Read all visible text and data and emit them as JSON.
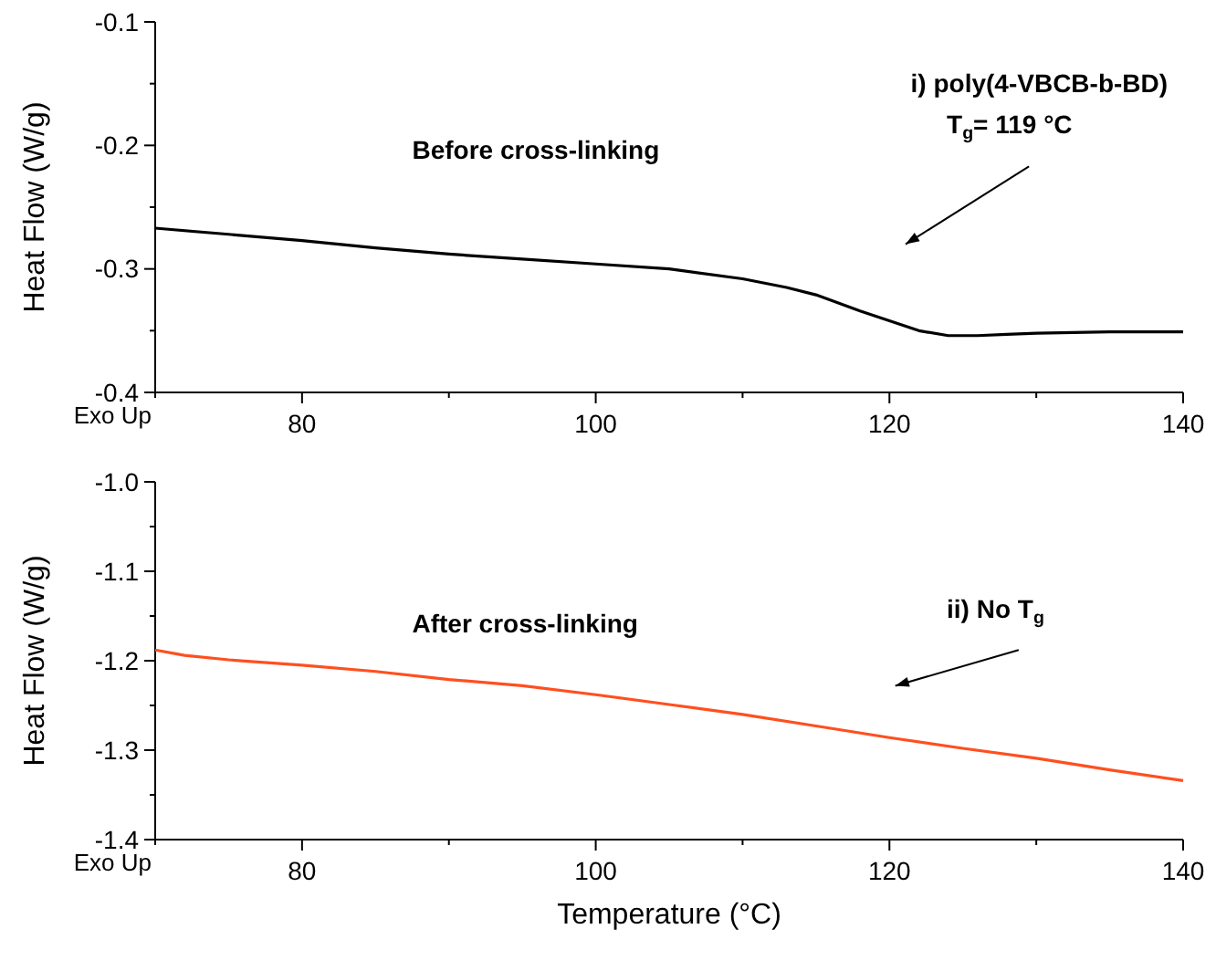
{
  "chart_data": [
    {
      "type": "line",
      "ylabel": "Heat Flow (W/g)",
      "xlim": [
        70,
        140
      ],
      "ylim": [
        -0.4,
        -0.1
      ],
      "xticks": [
        {
          "value": 70,
          "label": null
        },
        80,
        {
          "value": 90,
          "label": null
        },
        100,
        {
          "value": 110,
          "label": null
        },
        120,
        {
          "value": 130,
          "label": null
        },
        140
      ],
      "yticks": [
        -0.4,
        {
          "value": -0.35,
          "label": null
        },
        -0.3,
        {
          "value": -0.25,
          "label": null
        },
        -0.2,
        {
          "value": -0.15,
          "label": null
        },
        -0.1
      ],
      "grid": false,
      "marker": "none",
      "line_style": "solid",
      "series": [
        {
          "color": "#000000",
          "x": [
            70,
            75,
            80,
            85,
            90,
            95,
            100,
            105,
            110,
            113,
            115,
            118,
            120,
            122,
            124,
            126,
            128,
            130,
            135,
            140
          ],
          "values": [
            -0.267,
            -0.272,
            -0.277,
            -0.283,
            -0.288,
            -0.292,
            -0.296,
            -0.3,
            -0.308,
            -0.315,
            -0.321,
            -0.334,
            -0.342,
            -0.35,
            -0.354,
            -0.354,
            -0.353,
            -0.352,
            -0.351,
            -0.351
          ]
        }
      ],
      "annotations": [
        "Before cross-linking",
        "i) poly(4-VBCB-b-BD)",
        "T$_{g}$= 119 °C",
        "Exo Up"
      ]
    },
    {
      "type": "line",
      "xlabel": "Temperature (°C)",
      "ylabel": "Heat Flow (W/g)",
      "xlim": [
        70,
        140
      ],
      "ylim": [
        -1.4,
        -1.0
      ],
      "xticks": [
        {
          "value": 70,
          "label": null
        },
        80,
        {
          "value": 90,
          "label": null
        },
        100,
        {
          "value": 110,
          "label": null
        },
        120,
        {
          "value": 130,
          "label": null
        },
        140
      ],
      "yticks": [
        -1.4,
        {
          "value": -1.35,
          "label": null
        },
        -1.3,
        {
          "value": -1.25,
          "label": null
        },
        -1.2,
        {
          "value": -1.15,
          "label": null
        },
        -1.1,
        {
          "value": -1.05,
          "label": null
        },
        {
          "value": -1.0,
          "label": "-1.0"
        }
      ],
      "grid": false,
      "marker": "none",
      "line_style": "solid",
      "series": [
        {
          "color": "#ff4f1f",
          "x": [
            70,
            72,
            75,
            80,
            85,
            90,
            95,
            100,
            105,
            110,
            115,
            120,
            125,
            130,
            135,
            140
          ],
          "values": [
            -1.188,
            -1.194,
            -1.199,
            -1.205,
            -1.212,
            -1.221,
            -1.228,
            -1.238,
            -1.249,
            -1.26,
            -1.273,
            -1.286,
            -1.298,
            -1.309,
            -1.322,
            -1.334
          ]
        }
      ],
      "annotations": [
        "After cross-linking",
        "ii) No T$_{g}$",
        "Exo Up"
      ]
    }
  ]
}
